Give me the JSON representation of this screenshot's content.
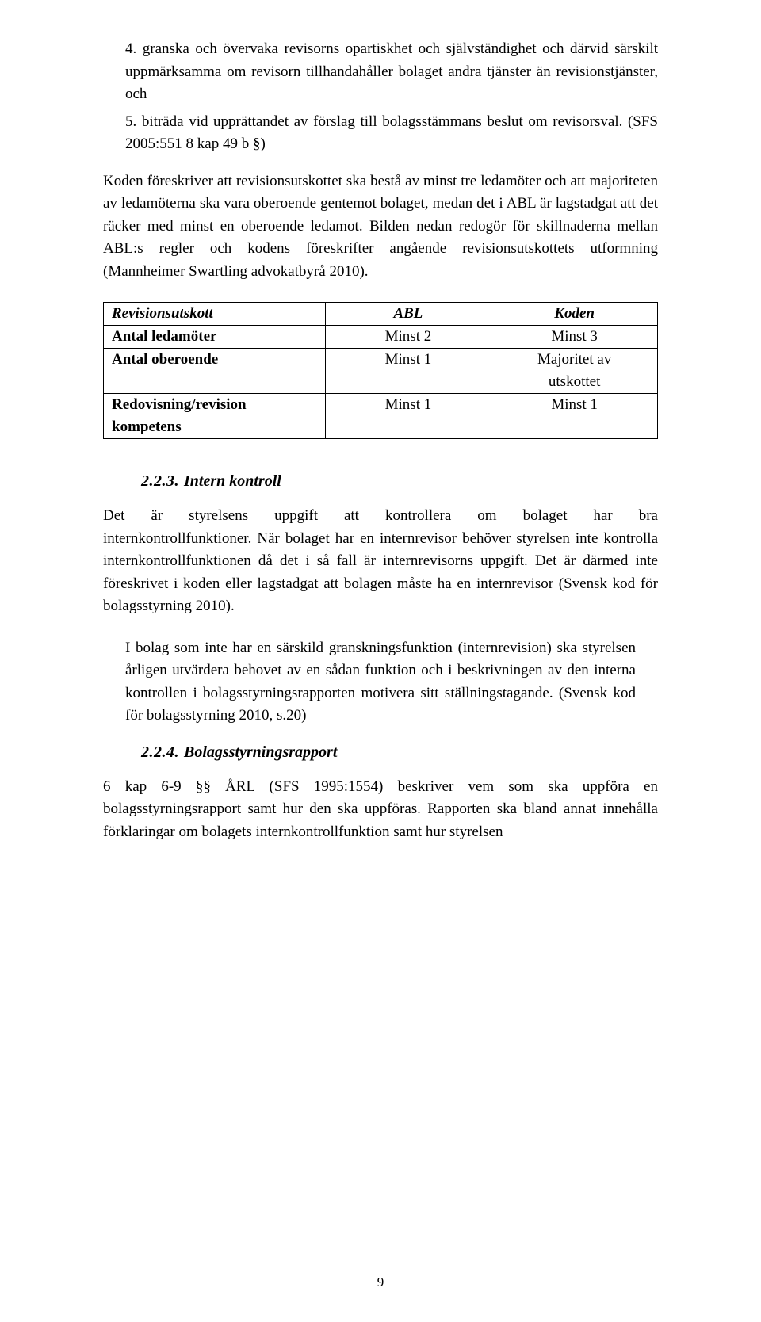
{
  "list": {
    "item4": "4. granska och övervaka revisorns opartiskhet och självständighet och därvid särskilt uppmärksamma om revisorn tillhandahåller bolaget andra tjänster än revisionstjänster, och",
    "item5": "5. biträda vid upprättandet av förslag till bolagsstämmans beslut om revisorsval. (SFS 2005:551 8 kap 49 b §)"
  },
  "para1": "Koden föreskriver att revisionsutskottet ska bestå av minst tre ledamöter och att majoriteten av ledamöterna ska vara oberoende gentemot bolaget, medan det i ABL är lagstadgat att det räcker med minst en oberoende ledamot. Bilden nedan redogör för skillnaderna mellan ABL:s regler och kodens föreskrifter angående revisionsutskottets utformning (Mannheimer Swartling advokatbyrå 2010).",
  "table": {
    "header": {
      "c1": "Revisionsutskott",
      "c2": "ABL",
      "c3": "Koden"
    },
    "row1": {
      "c1": "Antal ledamöter",
      "c2": "Minst 2",
      "c3": "Minst 3"
    },
    "row2a": {
      "c1": "Antal oberoende",
      "c2": "Minst 1",
      "c3": "Majoritet av"
    },
    "row2b": {
      "c1": "",
      "c2": "",
      "c3": "utskottet"
    },
    "row3a": {
      "c1": "Redovisning/revision",
      "c2": "Minst 1",
      "c3": "Minst 1"
    },
    "row3b": {
      "c1": "kompetens",
      "c2": "",
      "c3": ""
    }
  },
  "h223": {
    "num": "2.2.3.",
    "title": "Intern kontroll"
  },
  "para2": "Det är styrelsens uppgift att kontrollera om bolaget har bra internkontrollfunktioner. När bolaget har en internrevisor behöver styrelsen inte kontrolla internkontrollfunktionen då det i så fall är internrevisorns uppgift. Det är därmed inte föreskrivet i koden eller lagstadgat att bolagen måste ha en internrevisor (Svensk kod för bolagsstyrning 2010).",
  "quote": "I bolag som inte har en särskild granskningsfunktion (internrevision) ska styrelsen årligen utvärdera behovet av en sådan funktion och i beskrivningen av den interna kontrollen i bolagsstyrningsrapporten motivera sitt ställningstagande. (Svensk kod för bolagsstyrning 2010, s.20)",
  "h224": {
    "num": "2.2.4.",
    "title": "Bolagsstyrningsrapport"
  },
  "para3": "6 kap 6-9 §§ ÅRL (SFS 1995:1554) beskriver vem som ska uppföra en bolagsstyrningsrapport samt hur den ska uppföras. Rapporten ska bland annat innehålla förklaringar om bolagets internkontrollfunktion samt hur styrelsen",
  "pagenum": "9"
}
